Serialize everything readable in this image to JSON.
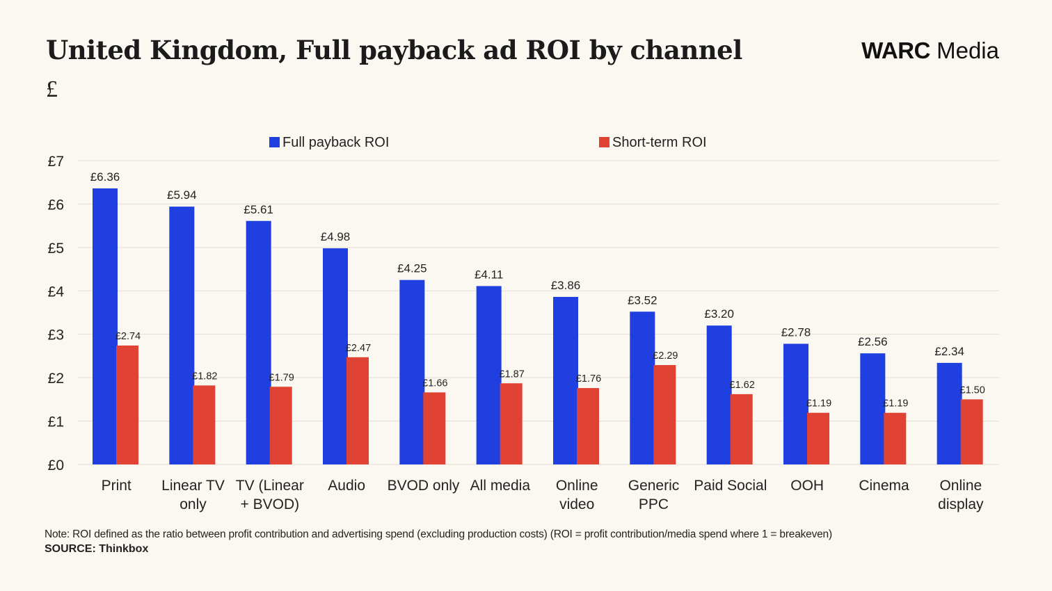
{
  "header": {
    "title": "United Kingdom, Full payback ad ROI by channel",
    "subtitle": "£",
    "brand_bold": "WARC",
    "brand_regular": " Media"
  },
  "footer": {
    "note": "Note: ROI defined as the ratio between profit contribution and advertising spend (excluding production costs) (ROI = profit contribution/media spend where 1 = breakeven)",
    "source": "SOURCE: Thinkbox"
  },
  "colors": {
    "full_payback": "#1f3fe0",
    "short_term": "#e04333",
    "gridline": "#e2ddd2",
    "text": "#222222"
  },
  "chart_data": {
    "type": "bar",
    "title": "United Kingdom, Full payback ad ROI by channel",
    "ylabel": "£",
    "xlabel": "",
    "ylim": [
      0,
      7
    ],
    "yticks": [
      "£0",
      "£1",
      "£2",
      "£3",
      "£4",
      "£5",
      "£6",
      "£7"
    ],
    "grid": true,
    "legend_position": "top",
    "categories": [
      [
        "Print"
      ],
      [
        "Linear TV",
        "only"
      ],
      [
        "TV (Linear",
        "+ BVOD)"
      ],
      [
        "Audio"
      ],
      [
        "BVOD only"
      ],
      [
        "All media"
      ],
      [
        "Online",
        "video"
      ],
      [
        "Generic",
        "PPC"
      ],
      [
        "Paid Social"
      ],
      [
        "OOH"
      ],
      [
        "Cinema"
      ],
      [
        "Online",
        "display"
      ]
    ],
    "series": [
      {
        "name": "Full payback ROI",
        "values": [
          6.36,
          5.94,
          5.61,
          4.98,
          4.25,
          4.11,
          3.86,
          3.52,
          3.2,
          2.78,
          2.56,
          2.34
        ],
        "labels": [
          "£6.36",
          "£5.94",
          "£5.61",
          "£4.98",
          "£4.25",
          "£4.11",
          "£3.86",
          "£3.52",
          "£3.20",
          "£2.78",
          "£2.56",
          "£2.34"
        ]
      },
      {
        "name": "Short-term ROI",
        "values": [
          2.74,
          1.82,
          1.79,
          2.47,
          1.66,
          1.87,
          1.76,
          2.29,
          1.62,
          1.19,
          1.19,
          1.5
        ],
        "labels": [
          "£2.74",
          "£1.82",
          "£1.79",
          "£2.47",
          "£1.66",
          "£1.87",
          "£1.76",
          "£2.29",
          "£1.62",
          "£1.19",
          "£1.19",
          "£1.50"
        ]
      }
    ]
  }
}
